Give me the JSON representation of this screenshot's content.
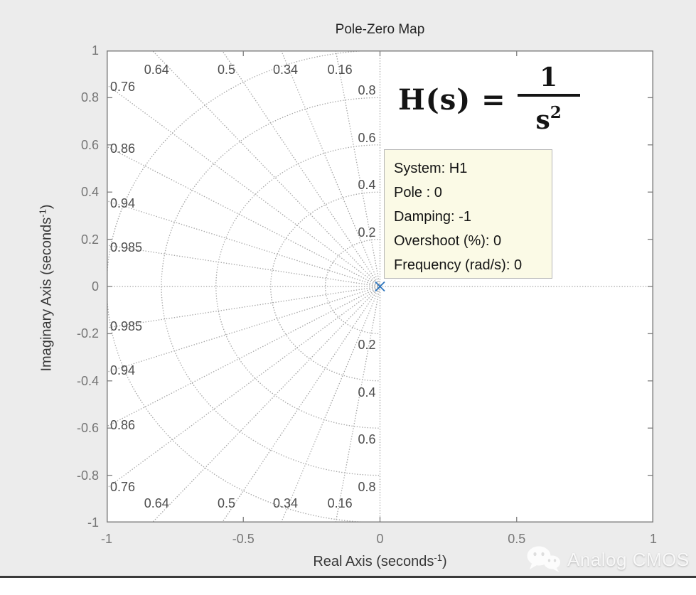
{
  "page": {
    "background": "#ececec",
    "bottom_bar_color": "#3a3a3a"
  },
  "title": "Pole-Zero Map",
  "formula": {
    "lhs": "H(s) =",
    "numerator": "1",
    "den_base": "s",
    "den_exp": "2"
  },
  "datatip": {
    "background": "#fbfae6",
    "border_color": "#b5b5b5",
    "lines": [
      "System: H1",
      "Pole : 0",
      "Damping: -1",
      "Overshoot (%): 0",
      "Frequency (rad/s): 0"
    ]
  },
  "watermark": {
    "label": "Analog CMOS",
    "icon": "wechat-logo"
  },
  "chart_data": {
    "type": "scatter",
    "subtype": "pole-zero-map",
    "title": "Pole-Zero Map",
    "xlabel": {
      "base": "Real Axis (seconds",
      "sup": "-1",
      "suffix": ")"
    },
    "ylabel": {
      "base": "Imaginary Axis (seconds",
      "sup": "-1",
      "suffix": ")"
    },
    "xlim": [
      -1,
      1
    ],
    "ylim": [
      -1,
      1
    ],
    "grid": "sgrid-dotted",
    "x_ticks": [
      {
        "v": -1,
        "label": "-1"
      },
      {
        "v": -0.5,
        "label": "-0.5"
      },
      {
        "v": 0,
        "label": "0"
      },
      {
        "v": 0.5,
        "label": "0.5"
      },
      {
        "v": 1,
        "label": "1"
      }
    ],
    "y_ticks": [
      {
        "v": 1,
        "label": "1"
      },
      {
        "v": 0.8,
        "label": "0.8"
      },
      {
        "v": 0.6,
        "label": "0.6"
      },
      {
        "v": 0.4,
        "label": "0.4"
      },
      {
        "v": 0.2,
        "label": "0.2"
      },
      {
        "v": 0,
        "label": "0"
      },
      {
        "v": -0.2,
        "label": "-0.2"
      },
      {
        "v": -0.4,
        "label": "-0.4"
      },
      {
        "v": -0.6,
        "label": "-0.6"
      },
      {
        "v": -0.8,
        "label": "-0.8"
      },
      {
        "v": -1,
        "label": "-1"
      }
    ],
    "damping_lines": [
      {
        "zeta": 0.16,
        "label": "0.16"
      },
      {
        "zeta": 0.34,
        "label": "0.34"
      },
      {
        "zeta": 0.5,
        "label": "0.5"
      },
      {
        "zeta": 0.64,
        "label": "0.64"
      },
      {
        "zeta": 0.76,
        "label": "0.76"
      },
      {
        "zeta": 0.86,
        "label": "0.86"
      },
      {
        "zeta": 0.94,
        "label": "0.94"
      },
      {
        "zeta": 0.985,
        "label": "0.985"
      }
    ],
    "natural_frequency_circles": [
      {
        "wn": 0.2,
        "label": "0.2"
      },
      {
        "wn": 0.4,
        "label": "0.4"
      },
      {
        "wn": 0.6,
        "label": "0.6"
      },
      {
        "wn": 0.8,
        "label": "0.8"
      },
      {
        "wn": 1,
        "label": ""
      }
    ],
    "poles": [
      {
        "system": "H1",
        "real": 0,
        "imag": 0,
        "damping": -1,
        "overshoot_pct": 0,
        "frequency_rad_s": 0
      }
    ],
    "zeros": [],
    "marker_color": "#2f76bd",
    "grid_color": "#a9a9a9",
    "axis_color": "#7f7f7f"
  }
}
